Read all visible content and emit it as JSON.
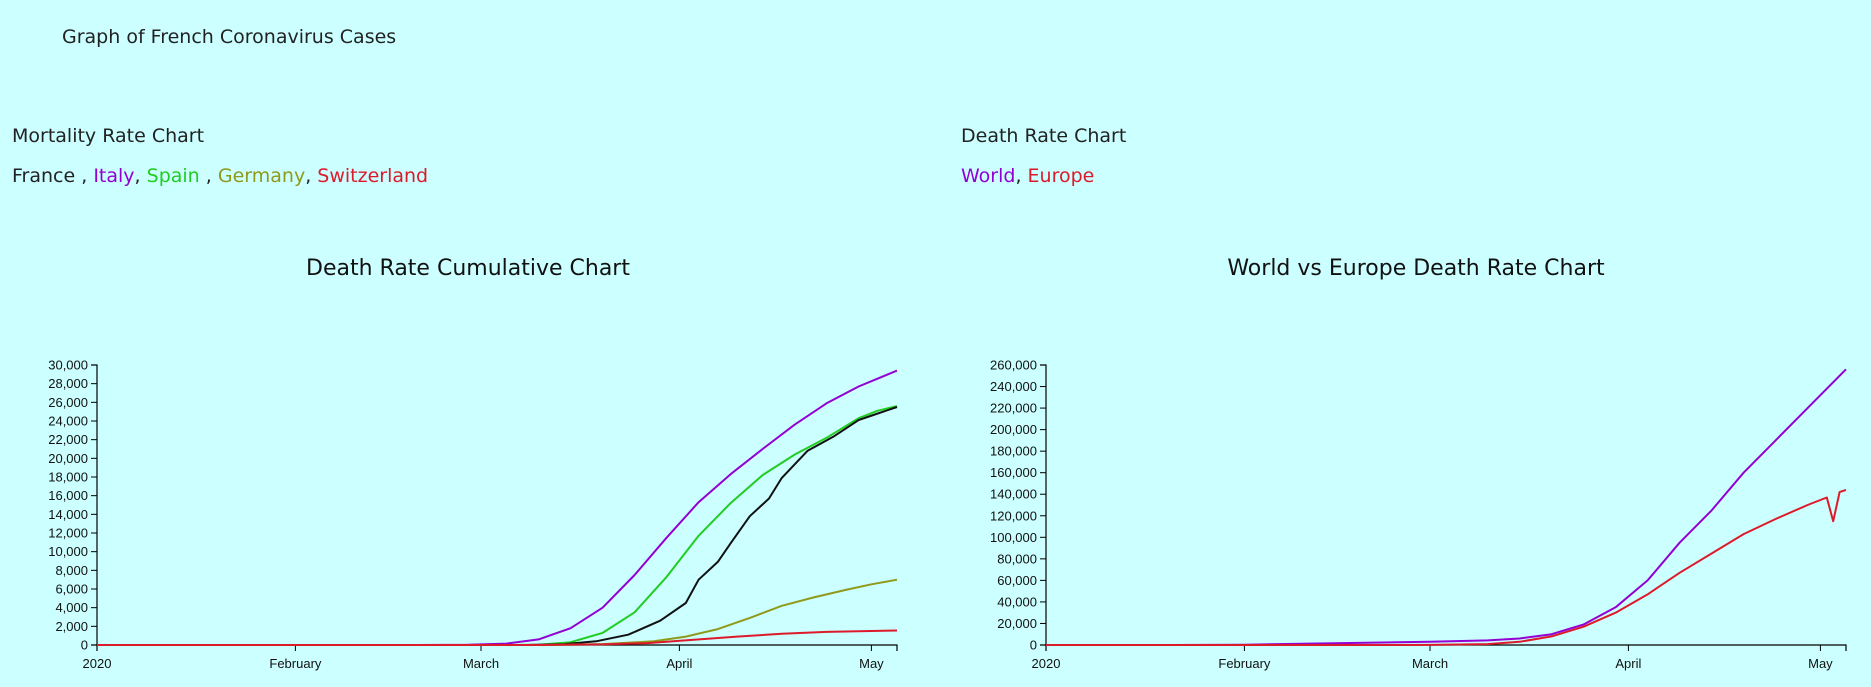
{
  "page_title": "Graph of French Coronavirus Cases",
  "left": {
    "section_title": "Mortality Rate Chart",
    "legend": [
      {
        "label": "France",
        "color": "#222222",
        "sep": " , "
      },
      {
        "label": "Italy",
        "color": "#9400d3",
        "sep": ", "
      },
      {
        "label": "Spain",
        "color": "#22cc22",
        "sep": " , "
      },
      {
        "label": "Germany",
        "color": "#8f9a1a",
        "sep": ", "
      },
      {
        "label": "Switzerland",
        "color": "#dd1a2a",
        "sep": ""
      }
    ]
  },
  "right": {
    "section_title": "Death Rate Chart",
    "legend": [
      {
        "label": "World",
        "color": "#9400d3",
        "sep": ", "
      },
      {
        "label": "Europe",
        "color": "#dd1a2a",
        "sep": ""
      }
    ]
  },
  "chart_data": [
    {
      "type": "line",
      "title": "Death Rate Cumulative Chart",
      "xlabel": "",
      "ylabel": "",
      "x_start": "2020-01-01",
      "x_end": "2020-05-05",
      "x_ticks": [
        {
          "label": "2020",
          "date": "2020-01-01"
        },
        {
          "label": "February",
          "date": "2020-02-01"
        },
        {
          "label": "March",
          "date": "2020-03-01"
        },
        {
          "label": "April",
          "date": "2020-04-01"
        },
        {
          "label": "May",
          "date": "2020-05-01"
        }
      ],
      "ylim": [
        0,
        30000
      ],
      "y_ticks": [
        "0",
        "2,000",
        "4,000",
        "6,000",
        "8,000",
        "10,000",
        "12,000",
        "14,000",
        "16,000",
        "18,000",
        "20,000",
        "22,000",
        "24,000",
        "26,000",
        "28,000",
        "30,000"
      ],
      "y_tick_values": [
        0,
        2000,
        4000,
        6000,
        8000,
        10000,
        12000,
        14000,
        16000,
        18000,
        20000,
        22000,
        24000,
        26000,
        28000,
        30000
      ],
      "series": [
        {
          "name": "Italy",
          "color": "#9400d3",
          "points": [
            [
              "2020-01-01",
              0
            ],
            [
              "2020-02-20",
              0
            ],
            [
              "2020-02-28",
              20
            ],
            [
              "2020-03-05",
              150
            ],
            [
              "2020-03-10",
              600
            ],
            [
              "2020-03-15",
              1800
            ],
            [
              "2020-03-20",
              4000
            ],
            [
              "2020-03-25",
              7500
            ],
            [
              "2020-03-30",
              11500
            ],
            [
              "2020-04-04",
              15300
            ],
            [
              "2020-04-09",
              18300
            ],
            [
              "2020-04-14",
              21000
            ],
            [
              "2020-04-19",
              23600
            ],
            [
              "2020-04-24",
              25900
            ],
            [
              "2020-04-29",
              27700
            ],
            [
              "2020-05-05",
              29400
            ]
          ]
        },
        {
          "name": "Spain",
          "color": "#22cc22",
          "points": [
            [
              "2020-01-01",
              0
            ],
            [
              "2020-03-05",
              0
            ],
            [
              "2020-03-10",
              30
            ],
            [
              "2020-03-15",
              300
            ],
            [
              "2020-03-20",
              1300
            ],
            [
              "2020-03-25",
              3500
            ],
            [
              "2020-03-30",
              7300
            ],
            [
              "2020-04-04",
              11700
            ],
            [
              "2020-04-09",
              15200
            ],
            [
              "2020-04-14",
              18200
            ],
            [
              "2020-04-19",
              20400
            ],
            [
              "2020-04-24",
              22200
            ],
            [
              "2020-04-29",
              24300
            ],
            [
              "2020-05-02",
              25100
            ],
            [
              "2020-05-05",
              25600
            ]
          ]
        },
        {
          "name": "France",
          "color": "#111111",
          "points": [
            [
              "2020-01-01",
              0
            ],
            [
              "2020-03-08",
              0
            ],
            [
              "2020-03-14",
              100
            ],
            [
              "2020-03-19",
              400
            ],
            [
              "2020-03-24",
              1100
            ],
            [
              "2020-03-29",
              2600
            ],
            [
              "2020-04-02",
              4500
            ],
            [
              "2020-04-04",
              7000
            ],
            [
              "2020-04-07",
              8900
            ],
            [
              "2020-04-09",
              10900
            ],
            [
              "2020-04-12",
              13800
            ],
            [
              "2020-04-15",
              15700
            ],
            [
              "2020-04-17",
              17900
            ],
            [
              "2020-04-21",
              20800
            ],
            [
              "2020-04-25",
              22300
            ],
            [
              "2020-04-29",
              24100
            ],
            [
              "2020-05-02",
              24800
            ],
            [
              "2020-05-05",
              25500
            ]
          ]
        },
        {
          "name": "Germany",
          "color": "#8f9a1a",
          "points": [
            [
              "2020-01-01",
              0
            ],
            [
              "2020-03-10",
              0
            ],
            [
              "2020-03-20",
              100
            ],
            [
              "2020-03-28",
              400
            ],
            [
              "2020-04-02",
              900
            ],
            [
              "2020-04-07",
              1700
            ],
            [
              "2020-04-12",
              2900
            ],
            [
              "2020-04-17",
              4200
            ],
            [
              "2020-04-22",
              5100
            ],
            [
              "2020-04-27",
              5900
            ],
            [
              "2020-05-01",
              6500
            ],
            [
              "2020-05-05",
              7000
            ]
          ]
        },
        {
          "name": "Switzerland",
          "color": "#dd1a2a",
          "points": [
            [
              "2020-01-01",
              0
            ],
            [
              "2020-03-10",
              0
            ],
            [
              "2020-03-20",
              60
            ],
            [
              "2020-03-27",
              200
            ],
            [
              "2020-04-03",
              550
            ],
            [
              "2020-04-10",
              900
            ],
            [
              "2020-04-17",
              1200
            ],
            [
              "2020-04-24",
              1400
            ],
            [
              "2020-05-05",
              1550
            ]
          ]
        }
      ]
    },
    {
      "type": "line",
      "title": "World vs Europe Death Rate Chart",
      "xlabel": "",
      "ylabel": "",
      "x_start": "2020-01-01",
      "x_end": "2020-05-05",
      "x_ticks": [
        {
          "label": "2020",
          "date": "2020-01-01"
        },
        {
          "label": "February",
          "date": "2020-02-01"
        },
        {
          "label": "March",
          "date": "2020-03-01"
        },
        {
          "label": "April",
          "date": "2020-04-01"
        },
        {
          "label": "May",
          "date": "2020-05-01"
        }
      ],
      "ylim": [
        0,
        260000
      ],
      "y_ticks": [
        "0",
        "20,000",
        "40,000",
        "60,000",
        "80,000",
        "100,000",
        "120,000",
        "140,000",
        "160,000",
        "180,000",
        "200,000",
        "220,000",
        "240,000",
        "260,000"
      ],
      "y_tick_values": [
        0,
        20000,
        40000,
        60000,
        80000,
        100000,
        120000,
        140000,
        160000,
        180000,
        200000,
        220000,
        240000,
        260000
      ],
      "series": [
        {
          "name": "World",
          "color": "#9400d3",
          "points": [
            [
              "2020-01-01",
              0
            ],
            [
              "2020-01-20",
              0
            ],
            [
              "2020-02-01",
              300
            ],
            [
              "2020-02-15",
              1700
            ],
            [
              "2020-03-01",
              3000
            ],
            [
              "2020-03-10",
              4300
            ],
            [
              "2020-03-15",
              6000
            ],
            [
              "2020-03-20",
              10000
            ],
            [
              "2020-03-25",
              19000
            ],
            [
              "2020-03-30",
              35000
            ],
            [
              "2020-04-04",
              60000
            ],
            [
              "2020-04-09",
              95000
            ],
            [
              "2020-04-14",
              125000
            ],
            [
              "2020-04-19",
              160000
            ],
            [
              "2020-04-24",
              190000
            ],
            [
              "2020-04-29",
              220000
            ],
            [
              "2020-05-05",
              256000
            ]
          ]
        },
        {
          "name": "Europe",
          "color": "#dd1a2a",
          "points": [
            [
              "2020-01-01",
              0
            ],
            [
              "2020-02-20",
              0
            ],
            [
              "2020-03-01",
              50
            ],
            [
              "2020-03-10",
              800
            ],
            [
              "2020-03-15",
              3000
            ],
            [
              "2020-03-20",
              8000
            ],
            [
              "2020-03-25",
              17000
            ],
            [
              "2020-03-30",
              30000
            ],
            [
              "2020-04-04",
              47000
            ],
            [
              "2020-04-09",
              67000
            ],
            [
              "2020-04-14",
              85000
            ],
            [
              "2020-04-19",
              103000
            ],
            [
              "2020-04-24",
              117000
            ],
            [
              "2020-04-29",
              130000
            ],
            [
              "2020-05-02",
              137000
            ],
            [
              "2020-05-03",
              115000
            ],
            [
              "2020-05-04",
              142000
            ],
            [
              "2020-05-05",
              144000
            ]
          ]
        }
      ]
    }
  ]
}
